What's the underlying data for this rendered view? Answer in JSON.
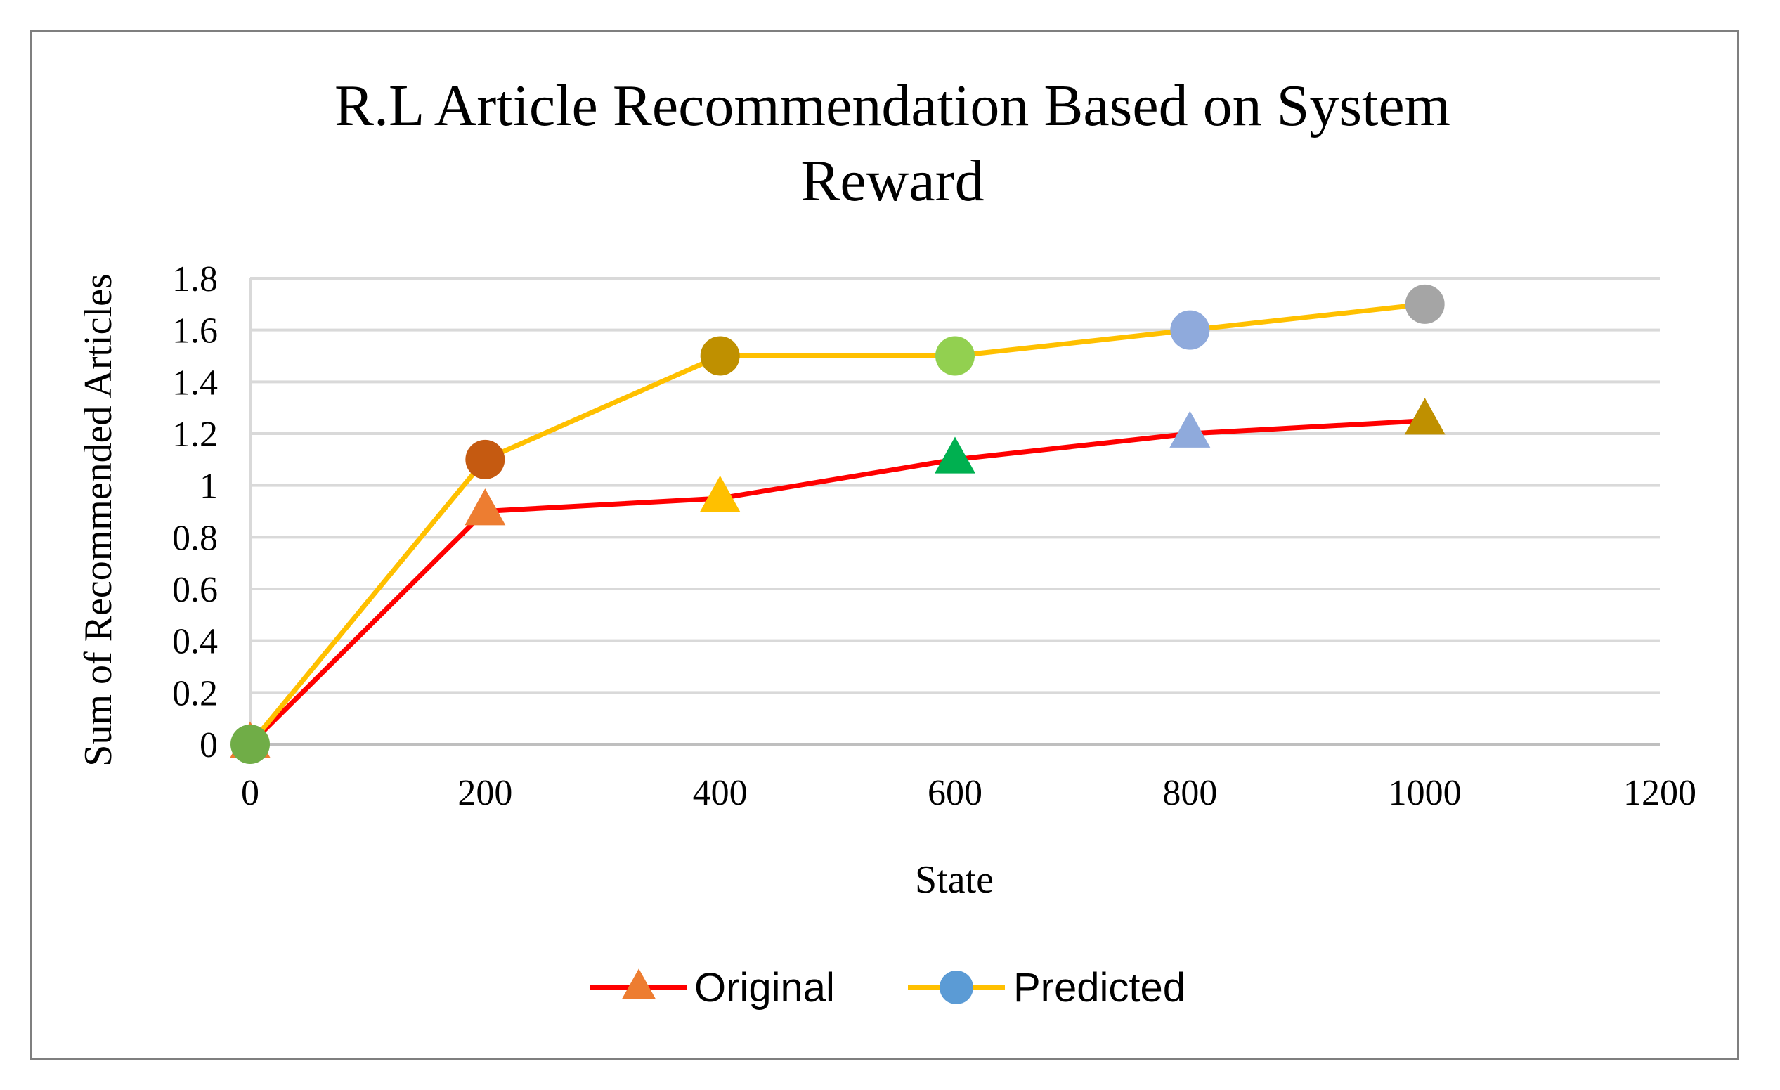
{
  "chart_data": {
    "type": "line",
    "title": "R.L Article Recommendation Based on System Reward",
    "title_lines": [
      "R.L Article Recommendation Based on System",
      "Reward"
    ],
    "xlabel": "State",
    "ylabel": "Sum of Recommended Articles",
    "x": [
      0,
      200,
      400,
      600,
      800,
      1000
    ],
    "xlim": [
      0,
      1200
    ],
    "ylim": [
      0,
      1.8
    ],
    "x_ticks": [
      "0",
      "200",
      "400",
      "600",
      "800",
      "1000",
      "1200"
    ],
    "y_ticks": [
      "0",
      "0.2",
      "0.4",
      "0.6",
      "0.8",
      "1",
      "1.2",
      "1.4",
      "1.6",
      "1.8"
    ],
    "grid": "horizontal",
    "legend_position": "bottom",
    "series": [
      {
        "name": "Original",
        "values": [
          0,
          0.9,
          0.95,
          1.1,
          1.2,
          1.25
        ],
        "line_color": "#ff0000",
        "marker": "triangle",
        "legend_marker_color": "#ed7d31",
        "marker_colors": [
          "#ed7d31",
          "#ed7d31",
          "#ffc000",
          "#00b050",
          "#8faadc",
          "#bf9000"
        ]
      },
      {
        "name": "Predicted",
        "values": [
          0,
          1.1,
          1.5,
          1.5,
          1.6,
          1.7
        ],
        "line_color": "#ffc000",
        "marker": "circle",
        "legend_marker_color": "#5b9bd5",
        "marker_colors": [
          "#70ad47",
          "#c55a11",
          "#bf9000",
          "#92d050",
          "#8faadc",
          "#a5a5a5"
        ]
      }
    ],
    "colors": {
      "grid": "#d9d9d9",
      "axis": "#bfbfbf",
      "frame": "#7f7f7f"
    }
  }
}
